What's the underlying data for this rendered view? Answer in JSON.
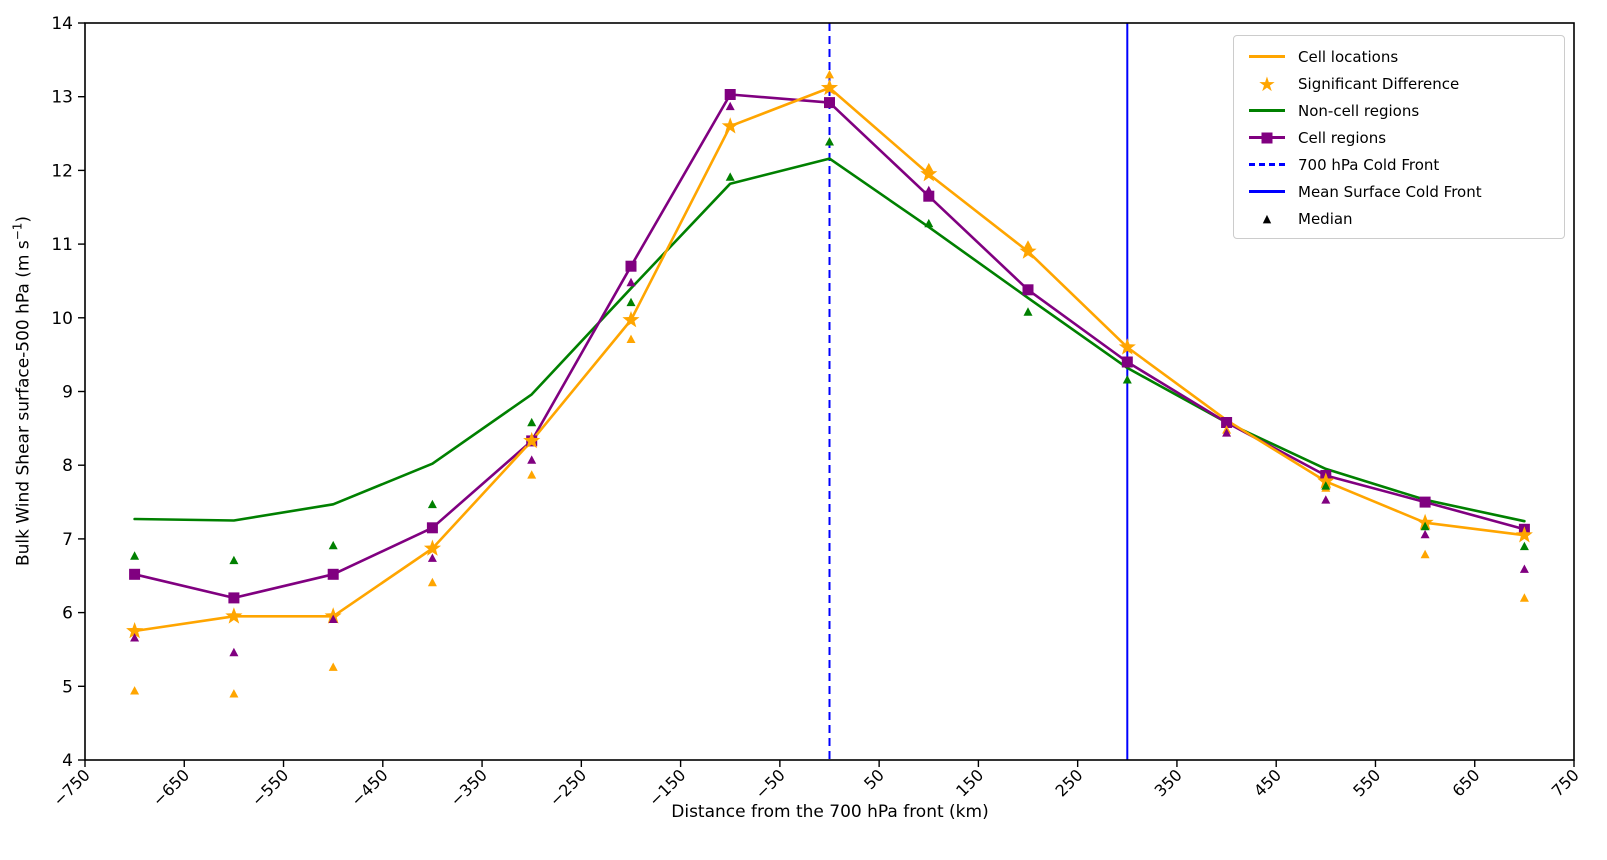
{
  "figure": {
    "background": "#ffffff"
  },
  "colors": {
    "cell_locations": "#FFA500",
    "non_cell_regions": "#008000",
    "cell_regions": "#800080",
    "front_lines": "#0000FF",
    "median_legend": "#000000",
    "axis": "#000000",
    "legend_border": "#cccccc"
  },
  "chart_data": {
    "type": "line",
    "title": "",
    "xlabel": "Distance from the 700 hPa front (km)",
    "ylabel": "Bulk Wind Shear surface-500 hPa (m s−1)",
    "ylabel_parts": {
      "prefix": "Bulk Wind Shear surface-500 hPa (m s",
      "superscript": "−1",
      "suffix": ")"
    },
    "xlim": [
      -750,
      750
    ],
    "ylim": [
      4,
      14
    ],
    "grid": false,
    "legend_position": "upper right",
    "xtick_values": [
      -750,
      -650,
      -550,
      -450,
      -350,
      -250,
      -150,
      -50,
      50,
      150,
      250,
      350,
      450,
      550,
      650,
      750
    ],
    "xtick_labels": [
      "−750",
      "−650",
      "−550",
      "−450",
      "−350",
      "−250",
      "−150",
      "−50",
      "50",
      "150",
      "250",
      "350",
      "450",
      "550",
      "650",
      "750"
    ],
    "ytick_values": [
      4,
      5,
      6,
      7,
      8,
      9,
      10,
      11,
      12,
      13,
      14
    ],
    "ytick_labels": [
      "4",
      "5",
      "6",
      "7",
      "8",
      "9",
      "10",
      "11",
      "12",
      "13",
      "14"
    ],
    "x": [
      -700,
      -600,
      -500,
      -400,
      -300,
      -200,
      -100,
      0,
      100,
      200,
      300,
      400,
      500,
      600,
      700
    ],
    "series": [
      {
        "name": "Cell locations",
        "color": "#FFA500",
        "marker": "star",
        "values": [
          5.75,
          5.95,
          5.95,
          6.87,
          8.33,
          9.97,
          12.6,
          13.12,
          11.95,
          10.9,
          9.6,
          8.61,
          7.78,
          7.22,
          7.05
        ],
        "significant_difference_x": [
          -700,
          -600,
          -500,
          -400,
          -300,
          -200,
          -100,
          0,
          100,
          200,
          300,
          500,
          600,
          700
        ]
      },
      {
        "name": "Non-cell regions",
        "color": "#008000",
        "marker": "none",
        "values": [
          7.27,
          7.25,
          7.47,
          8.02,
          8.96,
          10.4,
          11.82,
          12.16,
          11.23,
          10.27,
          9.32,
          8.58,
          7.95,
          7.53,
          7.24
        ]
      },
      {
        "name": "Cell regions",
        "color": "#800080",
        "marker": "square",
        "values": [
          6.52,
          6.2,
          6.52,
          7.15,
          8.33,
          10.7,
          13.03,
          12.92,
          11.65,
          10.38,
          9.4,
          8.58,
          7.86,
          7.5,
          7.13
        ]
      }
    ],
    "median_series": [
      {
        "name": "Median (Cell locations)",
        "color": "#FFA500",
        "values": [
          4.94,
          4.9,
          5.26,
          6.41,
          7.87,
          9.71,
          null,
          13.3,
          12.04,
          10.99,
          null,
          8.48,
          7.69,
          6.79,
          6.2
        ]
      },
      {
        "name": "Median (Non-cell regions)",
        "color": "#008000",
        "values": [
          6.77,
          6.71,
          6.91,
          7.47,
          8.58,
          10.21,
          11.91,
          12.39,
          11.28,
          10.08,
          9.16,
          null,
          7.72,
          7.17,
          6.9
        ]
      },
      {
        "name": "Median (Cell regions)",
        "color": "#800080",
        "values": [
          5.66,
          5.46,
          5.91,
          6.74,
          8.07,
          10.48,
          12.87,
          null,
          11.73,
          null,
          null,
          8.44,
          7.53,
          7.06,
          6.59
        ]
      }
    ],
    "vlines": [
      {
        "name": "700 hPa Cold Front",
        "x": 0,
        "style": "dashed",
        "color": "#0000FF"
      },
      {
        "name": "Mean Surface Cold Front",
        "x": 300,
        "style": "solid",
        "color": "#0000FF"
      }
    ]
  },
  "legend": {
    "items": [
      {
        "label": "Cell locations",
        "swatch": "orange-line",
        "color": "#FFA500"
      },
      {
        "label": "Significant Difference",
        "swatch": "orange-star",
        "color": "#FFA500"
      },
      {
        "label": "Non-cell regions",
        "swatch": "green-line",
        "color": "#008000"
      },
      {
        "label": "Cell regions",
        "swatch": "purple-line-square",
        "color": "#800080"
      },
      {
        "label": "700 hPa Cold Front",
        "swatch": "blue-dashed-line",
        "color": "#0000FF"
      },
      {
        "label": "Mean Surface Cold Front",
        "swatch": "blue-line",
        "color": "#0000FF"
      },
      {
        "label": "Median",
        "swatch": "black-triangle",
        "color": "#000000"
      }
    ]
  }
}
